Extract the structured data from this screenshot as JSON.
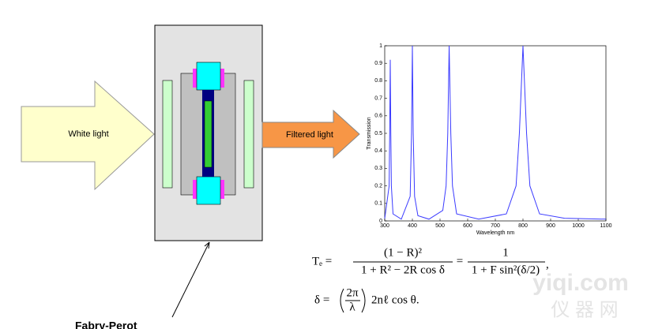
{
  "labels": {
    "white_light": "White light",
    "filtered_light": "Filtered light",
    "device": "Fabry-Perot"
  },
  "chart_data": {
    "type": "line",
    "y_label": "Transmission",
    "x_label": "Wavelength nm",
    "x": [
      300,
      316,
      318,
      320,
      322,
      324,
      330,
      360,
      392,
      397,
      400,
      403,
      408,
      420,
      460,
      510,
      522,
      528,
      533,
      539,
      545,
      560,
      640,
      740,
      775,
      787,
      800,
      813,
      825,
      860,
      950,
      1100
    ],
    "values": [
      0.013,
      0.2,
      0.5,
      0.92,
      0.5,
      0.2,
      0.04,
      0.01,
      0.14,
      0.5,
      1,
      0.5,
      0.14,
      0.03,
      0.01,
      0.06,
      0.2,
      0.5,
      1,
      0.5,
      0.2,
      0.04,
      0.01,
      0.04,
      0.2,
      0.5,
      1,
      0.5,
      0.2,
      0.04,
      0.015,
      0.01
    ],
    "color": "#3b3bff",
    "xlim": [
      300,
      1100
    ],
    "ylim": [
      0,
      1
    ],
    "xticks": [
      300,
      400,
      500,
      600,
      700,
      800,
      900,
      1000,
      1100
    ],
    "yticks": [
      0,
      0.1,
      0.2,
      0.3,
      0.4,
      0.5,
      0.6,
      0.7,
      0.8,
      0.9,
      1
    ]
  },
  "formula": {
    "eq1": {
      "lhs": "Tₑ =",
      "num1": "(1 − R)²",
      "den1": "1 + R² − 2R cos δ",
      "mid": "=",
      "num2": "1",
      "den2": "1 + F sin²(δ/2)",
      "end": ","
    },
    "eq2": {
      "lhs": "δ =",
      "num": "2π",
      "den": "λ",
      "rhs": "2nℓ cos θ."
    }
  },
  "watermark": {
    "site": "yiqi.com",
    "cn": "仪 器 网"
  }
}
